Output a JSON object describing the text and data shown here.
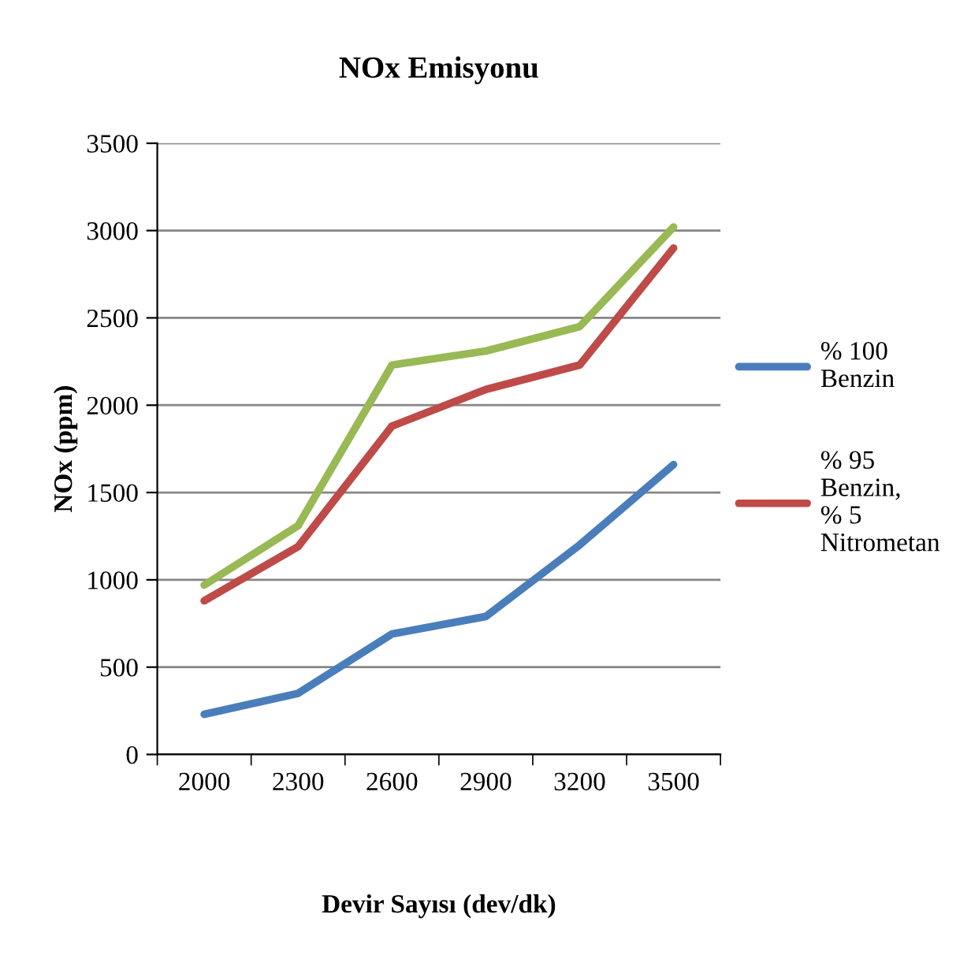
{
  "chart_data": {
    "type": "line",
    "title": "NOx Emisyonu",
    "xlabel": "Devir Sayısı (dev/dk)",
    "ylabel": "NOx (ppm)",
    "categories": [
      "2000",
      "2300",
      "2600",
      "2900",
      "3200",
      "3500"
    ],
    "series": [
      {
        "name": "% 100 Benzin",
        "color": "#4a7ebb",
        "values": [
          230,
          350,
          690,
          790,
          1200,
          1660
        ]
      },
      {
        "name": "% 95 Benzin, % 5 Nitrometan",
        "color": "#be4b48",
        "values": [
          880,
          1190,
          1880,
          2090,
          2230,
          2900
        ]
      },
      {
        "color": "#98b954",
        "values": [
          970,
          1310,
          2230,
          2310,
          2450,
          3020
        ]
      }
    ],
    "ylim": [
      0,
      3500
    ],
    "yticks": [
      0,
      500,
      1000,
      1500,
      2000,
      2500,
      3000,
      3500
    ],
    "grid": "y",
    "legend": "right",
    "marker": "none",
    "line_style": "solid"
  }
}
